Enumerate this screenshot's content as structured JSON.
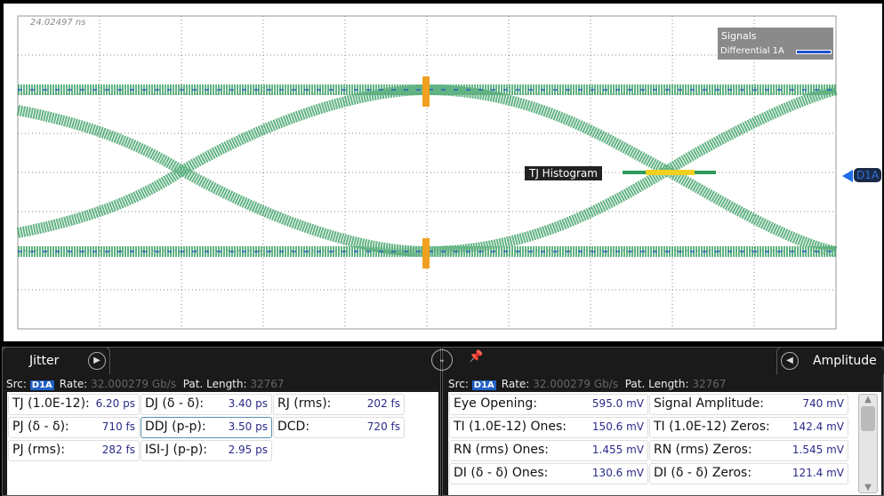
{
  "scope": {
    "timestamp": "24.02497 ns",
    "legend_title": "Signals",
    "legend_signal": "Differential 1A",
    "signal_color": "#1a4fd0",
    "trace_color": "#2e9a5a",
    "histogram_label": "TJ Histogram",
    "marker_label": "D1A"
  },
  "jitter": {
    "tab": "Jitter",
    "src_label": "Src:",
    "src": "D1A",
    "rate_label": "Rate:",
    "rate": "32.000279 Gb/s",
    "pat_label": "Pat. Length:",
    "pat": "32767",
    "cells": [
      {
        "l": "TJ (1.0E-12):",
        "v": "6.20 ps"
      },
      {
        "l": "DJ (δ - δ):",
        "v": "3.40 ps"
      },
      {
        "l": "RJ (rms):",
        "v": "202 fs"
      },
      {
        "l": "PJ (δ - δ):",
        "v": "710 fs"
      },
      {
        "l": "DDJ (p-p):",
        "v": "3.50 ps"
      },
      {
        "l": "DCD:",
        "v": "720 fs"
      },
      {
        "l": "PJ (rms):",
        "v": "282 fs"
      },
      {
        "l": "ISI-J (p-p):",
        "v": "2.95 ps"
      }
    ]
  },
  "amplitude": {
    "tab": "Amplitude",
    "src_label": "Src:",
    "src": "D1A",
    "rate_label": "Rate:",
    "rate": "32.000279 Gb/s",
    "pat_label": "Pat. Length:",
    "pat": "32767",
    "cells": [
      {
        "l": "Eye Opening:",
        "v": "595.0 mV"
      },
      {
        "l": "Signal Amplitude:",
        "v": "740 mV"
      },
      {
        "l": "TI (1.0E-12) Ones:",
        "v": "150.6 mV"
      },
      {
        "l": "TI (1.0E-12) Zeros:",
        "v": "142.4 mV"
      },
      {
        "l": "RN (rms) Ones:",
        "v": "1.455 mV"
      },
      {
        "l": "RN (rms) Zeros:",
        "v": "1.545 mV"
      },
      {
        "l": "DI (δ - δ) Ones:",
        "v": "130.6 mV"
      },
      {
        "l": "DI (δ - δ) Zeros:",
        "v": "121.4 mV"
      }
    ]
  }
}
